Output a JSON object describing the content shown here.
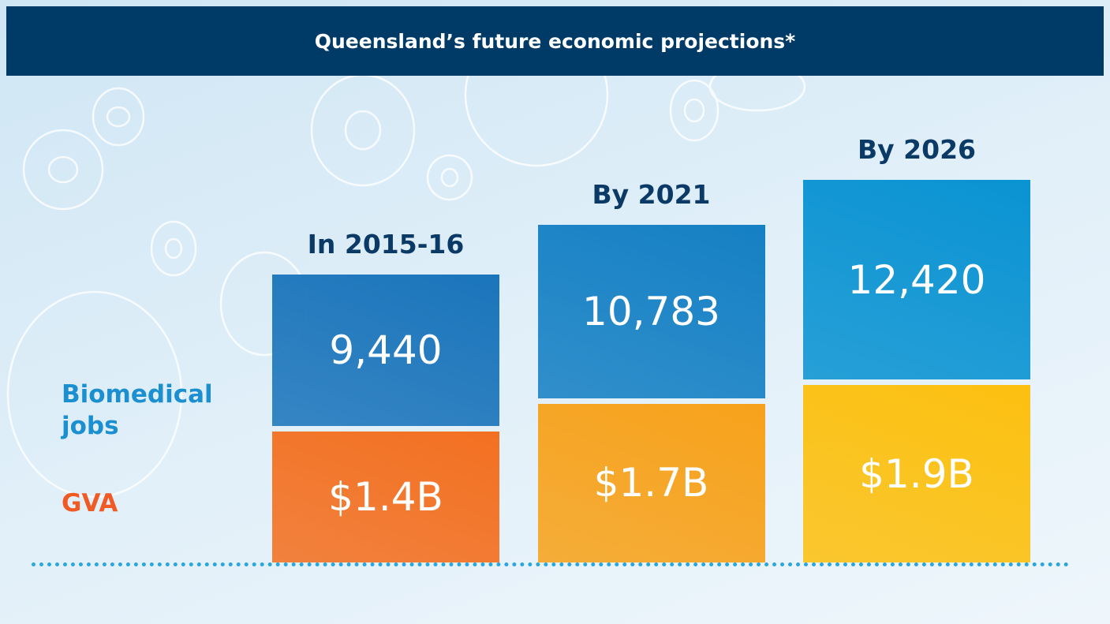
{
  "chart_data": {
    "type": "stacked-bar",
    "title": "Queensland’s future economic projections*",
    "categories": [
      "In 2015-16",
      "By 2021",
      "By 2026"
    ],
    "series": [
      {
        "name": "Biomedical jobs",
        "color": "#1b8fd0",
        "colors": [
          "#1b75bb",
          "#1580c4",
          "#0a93d2"
        ],
        "values": [
          9440,
          10783,
          12420
        ],
        "value_labels": [
          "9,440",
          "10,783",
          "12,420"
        ]
      },
      {
        "name": "GVA",
        "color": "#f05a24",
        "colors": [
          "#f37021",
          "#f7a21b",
          "#fcc010"
        ],
        "values": [
          1.4,
          1.7,
          1.9
        ],
        "value_labels": [
          "$1.4B",
          "$1.7B",
          "$1.9B"
        ]
      }
    ]
  }
}
